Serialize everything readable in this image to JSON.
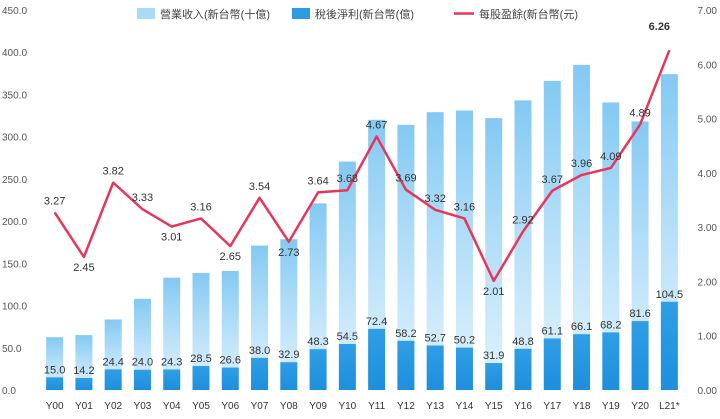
{
  "chart_data": {
    "type": "bar+line",
    "categories": [
      "Y00",
      "Y01",
      "Y02",
      "Y03",
      "Y04",
      "Y05",
      "Y06",
      "Y07",
      "Y08",
      "Y09",
      "Y10",
      "Y11",
      "Y12",
      "Y13",
      "Y14",
      "Y15",
      "Y16",
      "Y17",
      "Y18",
      "Y19",
      "Y20",
      "L21*"
    ],
    "series": [
      {
        "name": "營業收入(新台幣(十億)",
        "type": "bar",
        "axis": "left",
        "color": "#a9daf7",
        "values": [
          62.5,
          65.0,
          83.5,
          108.0,
          133.0,
          138.5,
          141.0,
          171.0,
          178.5,
          221.0,
          270.5,
          320.0,
          314.0,
          329.0,
          331.0,
          322.0,
          343.0,
          366.0,
          385.0,
          340.5,
          318.0,
          374.0
        ]
      },
      {
        "name": "稅後淨利(新台幣(億)",
        "type": "bar",
        "axis": "left",
        "color": "#2b9be3",
        "values": [
          15.0,
          14.2,
          24.4,
          24.0,
          24.3,
          28.5,
          26.6,
          38.0,
          32.9,
          48.3,
          54.5,
          72.4,
          58.2,
          52.7,
          50.2,
          31.9,
          48.8,
          61.1,
          66.1,
          68.2,
          81.6,
          104.5
        ],
        "labels": [
          "15.0",
          "14.2",
          "24.4",
          "24.0",
          "24.3",
          "28.5",
          "26.6",
          "38.0",
          "32.9",
          "48.3",
          "54.5",
          "72.4",
          "58.2",
          "52.7",
          "50.2",
          "31.9",
          "48.8",
          "61.1",
          "66.1",
          "68.2",
          "81.6",
          "104.5"
        ]
      },
      {
        "name": "每股盈餘(新台幣(元)",
        "type": "line",
        "axis": "right",
        "color": "#e8365a",
        "values": [
          3.27,
          2.45,
          3.82,
          3.33,
          3.01,
          3.16,
          2.65,
          3.54,
          2.73,
          3.64,
          3.68,
          4.67,
          3.69,
          3.32,
          3.16,
          2.01,
          2.92,
          3.67,
          3.96,
          4.09,
          4.89,
          6.26
        ],
        "labels": [
          "3.27",
          "2.45",
          "3.82",
          "3.33",
          "3.01",
          "3.16",
          "2.65",
          "3.54",
          "2.73",
          "3.64",
          "3.68",
          "4.67",
          "3.69",
          "3.32",
          "3.16",
          "2.01",
          "2.92",
          "3.67",
          "3.96",
          "4.09",
          "4.89",
          "6.26"
        ],
        "highlight_color": "#e8173f"
      }
    ],
    "y_left": {
      "min": 0,
      "max": 450,
      "step": 50,
      "ticks": [
        "0.0",
        "50.0",
        "100.0",
        "150.0",
        "200.0",
        "250.0",
        "300.0",
        "350.0",
        "400.0",
        "450.0"
      ]
    },
    "y_right": {
      "min": 0,
      "max": 7,
      "step": 1,
      "ticks": [
        "0.00",
        "1.00",
        "2.00",
        "3.00",
        "4.00",
        "5.00",
        "6.00",
        "7.00"
      ]
    },
    "legend_position": "top",
    "grid": false
  }
}
